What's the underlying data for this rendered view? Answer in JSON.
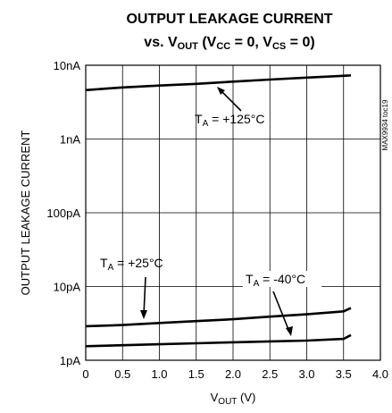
{
  "chart_data": {
    "type": "line",
    "title": {
      "line1": "OUTPUT LEAKAGE CURRENT",
      "line2_prefix": "vs. V",
      "line2_sub1": "OUT",
      "line2_mid1": " (V",
      "line2_sub2": "CC",
      "line2_mid2": " = 0, V",
      "line2_sub3": "CS",
      "line2_suffix": " = 0)"
    },
    "xlabel": {
      "main": "V",
      "sub": "OUT",
      "rest": " (V)"
    },
    "ylabel": "OUTPUT  LEAKAGE CURRENT",
    "side_id": "MAX9934 toc19",
    "x_range": [
      0,
      4.0
    ],
    "y_scale": "log",
    "y_range_A": [
      1e-12,
      1e-08
    ],
    "x_ticks": [
      0,
      0.5,
      1.0,
      1.5,
      2.0,
      2.5,
      3.0,
      3.5,
      4.0
    ],
    "x_tick_labels": [
      "0",
      "0.5",
      "1.0",
      "1.5",
      "2.0",
      "2.5",
      "3.0",
      "3.5",
      "4.0"
    ],
    "y_ticks_A": [
      1e-12,
      1e-11,
      1e-10,
      1e-09,
      1e-08
    ],
    "y_tick_labels": [
      "1pA",
      "10pA",
      "100pA",
      "1nA",
      "10nA"
    ],
    "grid": true,
    "series": [
      {
        "name": "TA = +125°C",
        "label": {
          "main": "T",
          "sub": "A",
          "rest": " = +125°C"
        },
        "x": [
          0,
          0.5,
          1.0,
          1.5,
          2.0,
          2.5,
          3.0,
          3.5,
          3.6
        ],
        "y": [
          4.6e-09,
          5e-09,
          5.3e-09,
          5.6e-09,
          6e-09,
          6.4e-09,
          6.8e-09,
          7.2e-09,
          7.3e-09
        ]
      },
      {
        "name": "TA = +25°C",
        "label": {
          "main": "T",
          "sub": "A",
          "rest": " = +25°C"
        },
        "x": [
          0,
          0.5,
          1.0,
          1.5,
          2.0,
          2.5,
          3.0,
          3.5,
          3.6
        ],
        "y": [
          2.9e-12,
          3e-12,
          3.2e-12,
          3.4e-12,
          3.6e-12,
          3.9e-12,
          4.2e-12,
          4.6e-12,
          5.1e-12
        ]
      },
      {
        "name": "TA = -40°C",
        "label": {
          "main": "T",
          "sub": "A",
          "rest": " = -40°C"
        },
        "x": [
          0,
          0.5,
          1.0,
          1.5,
          2.0,
          2.5,
          3.0,
          3.5,
          3.6
        ],
        "y": [
          1.55e-12,
          1.6e-12,
          1.65e-12,
          1.7e-12,
          1.75e-12,
          1.8e-12,
          1.85e-12,
          1.95e-12,
          2.2e-12
        ]
      }
    ]
  }
}
